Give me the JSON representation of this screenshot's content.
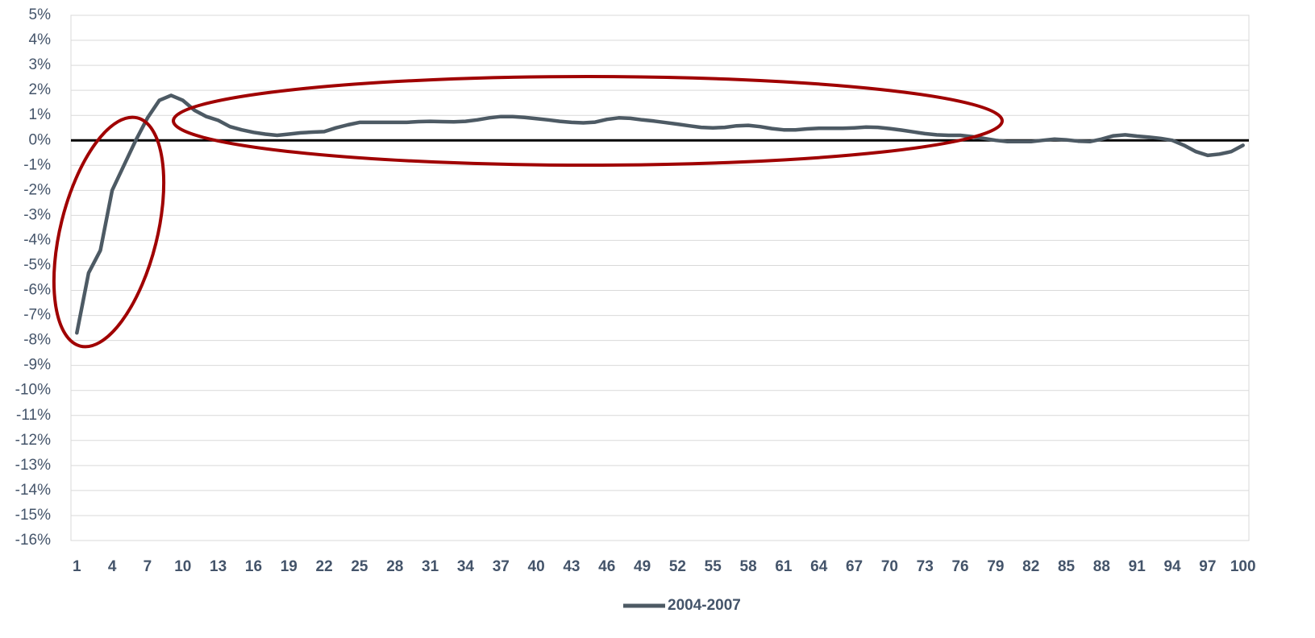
{
  "chart_data": {
    "type": "line",
    "categories": [
      "1",
      null,
      null,
      "4",
      null,
      null,
      "7",
      null,
      null,
      "10",
      null,
      null,
      "13",
      null,
      null,
      "16",
      null,
      null,
      "19",
      null,
      null,
      "22",
      null,
      null,
      "25",
      null,
      null,
      "28",
      null,
      null,
      "31",
      null,
      null,
      "34",
      null,
      null,
      "37",
      null,
      null,
      "40",
      null,
      null,
      "43",
      null,
      null,
      "46",
      null,
      null,
      "49",
      null,
      null,
      "52",
      null,
      null,
      "55",
      null,
      null,
      "58",
      null,
      null,
      "61",
      null,
      null,
      "64",
      null,
      null,
      "67",
      null,
      null,
      "70",
      null,
      null,
      "73",
      null,
      null,
      "76",
      null,
      null,
      "79",
      null,
      null,
      "82",
      null,
      null,
      "85",
      null,
      null,
      "88",
      null,
      null,
      "91",
      null,
      null,
      "94",
      null,
      null,
      "97",
      null,
      null,
      "100"
    ],
    "series": [
      {
        "name": "2004-2007",
        "color": "#4d5a64",
        "values": [
          -7.7,
          -5.3,
          -4.4,
          -2.0,
          -1.0,
          0.0,
          0.9,
          1.6,
          1.8,
          1.6,
          1.2,
          0.95,
          0.8,
          0.55,
          0.42,
          0.32,
          0.25,
          0.2,
          0.25,
          0.3,
          0.33,
          0.35,
          0.5,
          0.62,
          0.72,
          0.72,
          0.72,
          0.72,
          0.72,
          0.75,
          0.76,
          0.75,
          0.74,
          0.76,
          0.82,
          0.9,
          0.95,
          0.95,
          0.92,
          0.87,
          0.82,
          0.76,
          0.72,
          0.7,
          0.73,
          0.84,
          0.9,
          0.88,
          0.82,
          0.77,
          0.71,
          0.65,
          0.58,
          0.52,
          0.5,
          0.52,
          0.58,
          0.6,
          0.55,
          0.47,
          0.42,
          0.42,
          0.46,
          0.48,
          0.48,
          0.48,
          0.5,
          0.53,
          0.52,
          0.47,
          0.41,
          0.34,
          0.27,
          0.22,
          0.2,
          0.2,
          0.15,
          0.08,
          0.0,
          -0.05,
          -0.05,
          -0.05,
          0.0,
          0.05,
          0.02,
          -0.03,
          -0.05,
          0.05,
          0.18,
          0.22,
          0.17,
          0.13,
          0.08,
          0.0,
          -0.2,
          -0.45,
          -0.6,
          -0.55,
          -0.45,
          -0.2
        ]
      }
    ],
    "ylim": [
      -16,
      5
    ],
    "yticks": [
      {
        "value": 5,
        "label": "5%"
      },
      {
        "value": 4,
        "label": "4%"
      },
      {
        "value": 3,
        "label": "3%"
      },
      {
        "value": 2,
        "label": "2%"
      },
      {
        "value": 1,
        "label": "1%"
      },
      {
        "value": 0,
        "label": "0%"
      },
      {
        "value": -1,
        "label": "-1%"
      },
      {
        "value": -2,
        "label": "-2%"
      },
      {
        "value": -3,
        "label": "-3%"
      },
      {
        "value": -4,
        "label": "-4%"
      },
      {
        "value": -5,
        "label": "-5%"
      },
      {
        "value": -6,
        "label": "-6%"
      },
      {
        "value": -7,
        "label": "-7%"
      },
      {
        "value": -8,
        "label": "-8%"
      },
      {
        "value": -9,
        "label": "-9%"
      },
      {
        "value": -10,
        "label": "-10%"
      },
      {
        "value": -11,
        "label": "-11%"
      },
      {
        "value": -12,
        "label": "-12%"
      },
      {
        "value": -13,
        "label": "-13%"
      },
      {
        "value": -14,
        "label": "-14%"
      },
      {
        "value": -15,
        "label": "-15%"
      },
      {
        "value": -16,
        "label": "-16%"
      }
    ],
    "grid": true,
    "legend": "bottom"
  }
}
